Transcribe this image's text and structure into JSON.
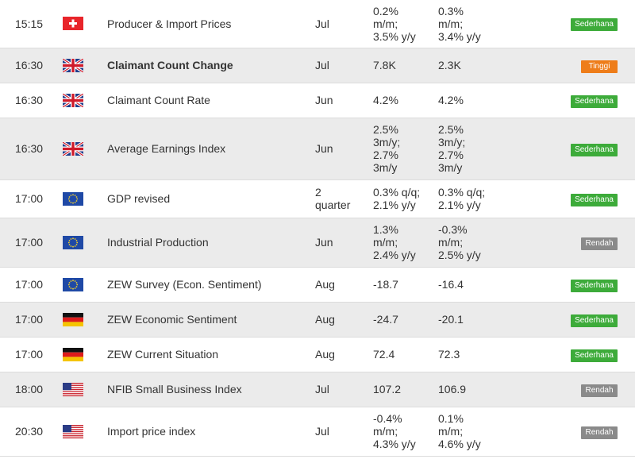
{
  "colors": {
    "sederhana": "#3dab3a",
    "tinggi": "#ee7d1a",
    "rendah": "#8a8a8a"
  },
  "rows": [
    {
      "time": "15:15",
      "flag": "ch",
      "event": "Producer & Import Prices",
      "bold": false,
      "period": "Jul",
      "actual": "0.2%\nm/m;\n3.5% y/y",
      "previous": "0.3%\nm/m;\n3.4% y/y",
      "impact": "Sederhana",
      "level": "sederhana"
    },
    {
      "time": "16:30",
      "flag": "uk",
      "event": "Claimant Count Change",
      "bold": true,
      "period": "Jul",
      "actual": "7.8K",
      "previous": "2.3K",
      "impact": "Tinggi",
      "level": "tinggi"
    },
    {
      "time": "16:30",
      "flag": "uk",
      "event": "Claimant Count Rate",
      "bold": false,
      "period": "Jun",
      "actual": "4.2%",
      "previous": "4.2%",
      "impact": "Sederhana",
      "level": "sederhana"
    },
    {
      "time": "16:30",
      "flag": "uk",
      "event": "Average Earnings Index",
      "bold": false,
      "period": "Jun",
      "actual": "2.5%\n3m/y;\n2.7%\n3m/y",
      "previous": "2.5%\n3m/y;\n2.7%\n3m/y",
      "impact": "Sederhana",
      "level": "sederhana"
    },
    {
      "time": "17:00",
      "flag": "eu",
      "event": "GDP revised",
      "bold": false,
      "period": "2\nquarter",
      "actual": "0.3% q/q;\n2.1% y/y",
      "previous": "0.3% q/q;\n2.1% y/y",
      "impact": "Sederhana",
      "level": "sederhana"
    },
    {
      "time": "17:00",
      "flag": "eu",
      "event": "Industrial Production",
      "bold": false,
      "period": "Jun",
      "actual": "1.3%\nm/m;\n2.4% y/y",
      "previous": "-0.3%\nm/m;\n2.5% y/y",
      "impact": "Rendah",
      "level": "rendah"
    },
    {
      "time": "17:00",
      "flag": "eu",
      "event": "ZEW Survey (Econ. Sentiment)",
      "bold": false,
      "period": "Aug",
      "actual": "-18.7",
      "previous": "-16.4",
      "impact": "Sederhana",
      "level": "sederhana"
    },
    {
      "time": "17:00",
      "flag": "de",
      "event": "ZEW Economic Sentiment",
      "bold": false,
      "period": "Aug",
      "actual": "-24.7",
      "previous": "-20.1",
      "impact": "Sederhana",
      "level": "sederhana"
    },
    {
      "time": "17:00",
      "flag": "de",
      "event": "ZEW Current Situation",
      "bold": false,
      "period": "Aug",
      "actual": "72.4",
      "previous": "72.3",
      "impact": "Sederhana",
      "level": "sederhana"
    },
    {
      "time": "18:00",
      "flag": "us",
      "event": "NFIB Small Business Index",
      "bold": false,
      "period": "Jul",
      "actual": "107.2",
      "previous": "106.9",
      "impact": "Rendah",
      "level": "rendah"
    },
    {
      "time": "20:30",
      "flag": "us",
      "event": "Import price index",
      "bold": false,
      "period": "Jul",
      "actual": "-0.4%\nm/m;\n4.3% y/y",
      "previous": "0.1%\nm/m;\n4.6% y/y",
      "impact": "Rendah",
      "level": "rendah"
    }
  ]
}
